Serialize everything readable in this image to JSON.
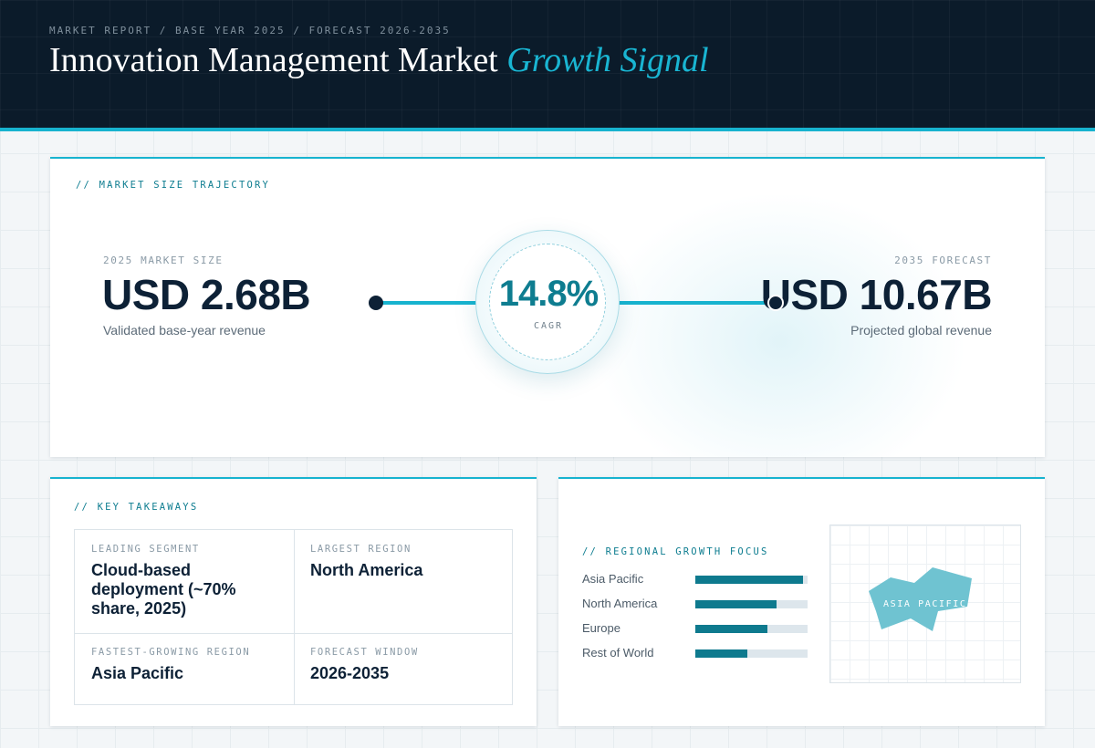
{
  "header": {
    "kicker": "MARKET REPORT / BASE YEAR 2025 / FORECAST 2026-2035",
    "title_main": "Innovation Management Market",
    "title_accent": "Growth Signal"
  },
  "trajectory": {
    "section_label": "// MARKET SIZE TRAJECTORY",
    "start": {
      "label": "2025 MARKET SIZE",
      "value": "USD 2.68B",
      "note": "Validated base-year revenue"
    },
    "end": {
      "label": "2035 FORECAST",
      "value": "USD 10.67B",
      "note": "Projected global revenue"
    },
    "cagr": {
      "value": "14.8%",
      "label": "CAGR"
    }
  },
  "takeaways": {
    "section_label": "// KEY TAKEAWAYS",
    "items": [
      {
        "label": "LEADING SEGMENT",
        "value": "Cloud-based deployment (~70% share, 2025)"
      },
      {
        "label": "LARGEST REGION",
        "value": "North America"
      },
      {
        "label": "FASTEST-GROWING REGION",
        "value": "Asia Pacific"
      },
      {
        "label": "FORECAST WINDOW",
        "value": "2026-2035"
      }
    ]
  },
  "regional": {
    "section_label": "// REGIONAL GROWTH FOCUS",
    "map_label": "ASIA PACIFIC",
    "colors": {
      "bar": "#0e7a8e",
      "track": "#dde6ec",
      "map": "#6fc3d1"
    }
  },
  "chart_data": {
    "type": "bar",
    "orientation": "horizontal",
    "categories": [
      "Asia Pacific",
      "North America",
      "Europe",
      "Rest of World"
    ],
    "values": [
      96,
      72,
      64,
      46
    ],
    "xlim": [
      0,
      100
    ],
    "grid": false
  }
}
